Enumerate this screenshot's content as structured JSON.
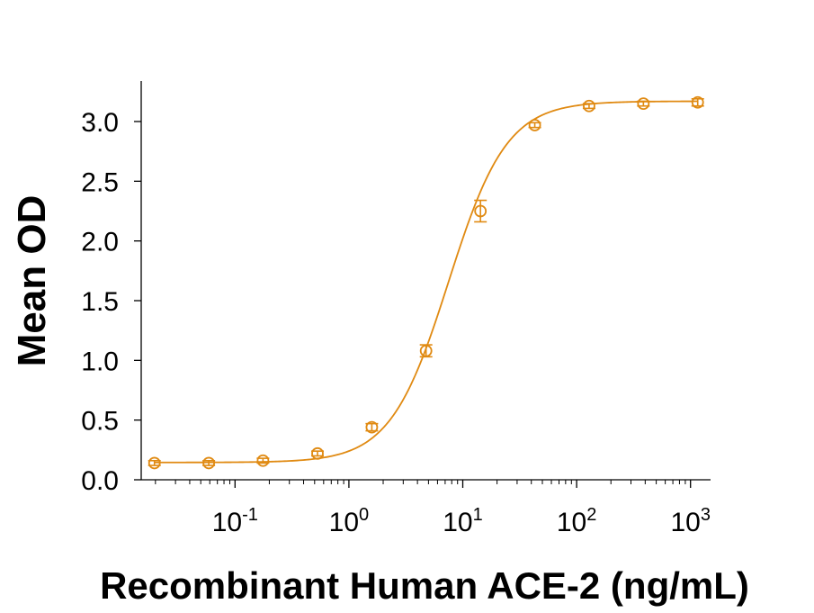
{
  "chart_data": {
    "type": "scatter",
    "xlabel": "Recombinant Human ACE-2 (ng/mL)",
    "ylabel": "Mean OD",
    "x_scale": "log",
    "xlim": [
      0.015,
      1500
    ],
    "ylim": [
      0,
      3.3
    ],
    "x_major_ticks": [
      {
        "value": 0.1,
        "base": "10",
        "exp": "-1"
      },
      {
        "value": 1,
        "base": "10",
        "exp": "0"
      },
      {
        "value": 10,
        "base": "10",
        "exp": "1"
      },
      {
        "value": 100,
        "base": "10",
        "exp": "2"
      },
      {
        "value": 1000,
        "base": "10",
        "exp": "3"
      }
    ],
    "y_ticks": [
      {
        "value": 0,
        "label": "0.0"
      },
      {
        "value": 0.5,
        "label": "0.5"
      },
      {
        "value": 1,
        "label": "1.0"
      },
      {
        "value": 1.5,
        "label": "1.5"
      },
      {
        "value": 2,
        "label": "2.0"
      },
      {
        "value": 2.5,
        "label": "2.5"
      },
      {
        "value": 3,
        "label": "3.0"
      }
    ],
    "grid": false,
    "legend": "none",
    "color": "#E08A12",
    "points": [
      {
        "x": 0.0196,
        "y": 0.14,
        "err": 0.02
      },
      {
        "x": 0.0588,
        "y": 0.14,
        "err": 0.02
      },
      {
        "x": 0.176,
        "y": 0.16,
        "err": 0.02
      },
      {
        "x": 0.53,
        "y": 0.22,
        "err": 0.02
      },
      {
        "x": 1.59,
        "y": 0.44,
        "err": 0.03
      },
      {
        "x": 4.76,
        "y": 1.08,
        "err": 0.05
      },
      {
        "x": 14.3,
        "y": 2.25,
        "err": 0.09
      },
      {
        "x": 42.9,
        "y": 2.97,
        "err": 0.02
      },
      {
        "x": 128.6,
        "y": 3.13,
        "err": 0.02
      },
      {
        "x": 385.8,
        "y": 3.15,
        "err": 0.02
      },
      {
        "x": 1157,
        "y": 3.16,
        "err": 0.03
      }
    ],
    "fit": {
      "model": "4PL",
      "bottom": 0.145,
      "top": 3.17,
      "ec50": 7.5,
      "hill": 1.7
    }
  }
}
